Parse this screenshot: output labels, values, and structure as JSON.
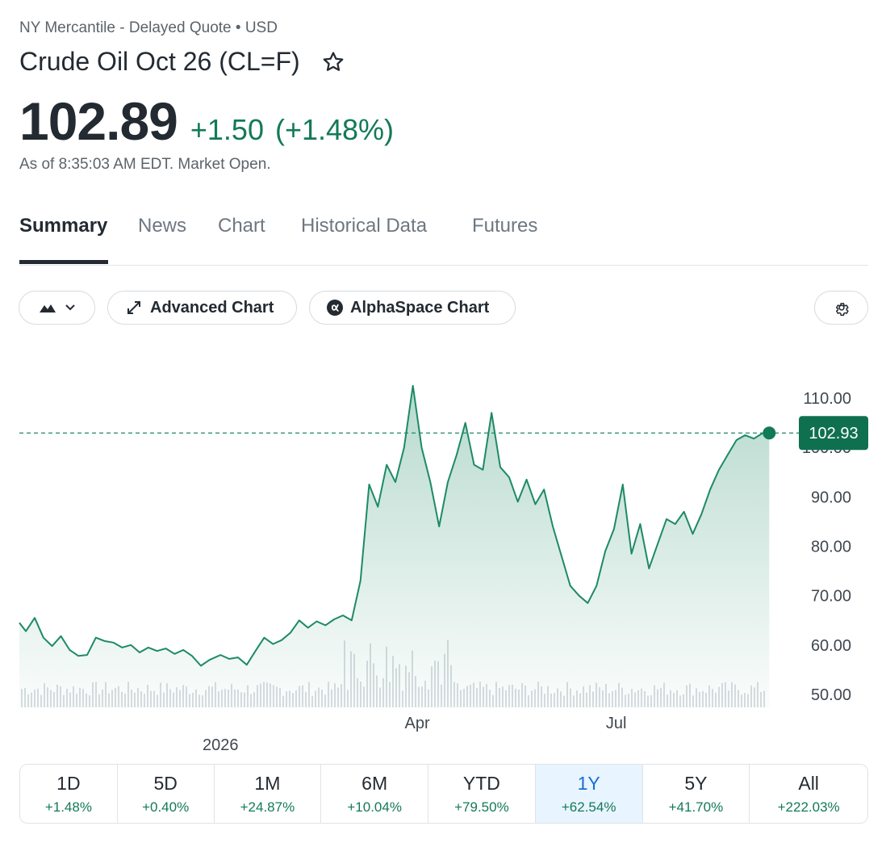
{
  "quote": {
    "exchange_line": "NY Mercantile - Delayed Quote • USD",
    "title": "Crude Oil Oct 26 (CL=F)",
    "price": "102.89",
    "change": "+1.50",
    "change_pct": "(+1.48%)",
    "as_of": "As of 8:35:03 AM EDT. Market Open."
  },
  "tabs": [
    {
      "label": "Summary",
      "active": true
    },
    {
      "label": "News"
    },
    {
      "label": "Chart"
    },
    {
      "label": "Historical Data"
    },
    {
      "label": "Futures"
    }
  ],
  "toolbar": {
    "chart_type_icon": "mountain-chart-icon",
    "advanced_label": "Advanced Chart",
    "alphaspace_label": "AlphaSpace Chart",
    "settings_icon": "gear-icon"
  },
  "colors": {
    "accent_green": "#137a56",
    "line": "#1d8a66",
    "active_period_bg": "#e8f4ff",
    "active_period_text": "#1a6fd1"
  },
  "chart_data": {
    "type": "area",
    "title": "",
    "xlabel": "",
    "ylabel": "",
    "x_range": [
      "2025-10-01",
      "2026-09-10"
    ],
    "ylim": [
      47,
      116
    ],
    "y_ticks": [
      "110.00",
      "100.00",
      "90.00",
      "80.00",
      "70.00",
      "60.00",
      "50.00"
    ],
    "y_tick_values": [
      110,
      100,
      90,
      80,
      70,
      60,
      50
    ],
    "x_tick_labels": [
      {
        "label": "Apr",
        "x": "2026-04-01"
      },
      {
        "label": "Jul",
        "x": "2026-07-01"
      },
      {
        "label": "2026",
        "x": "2026-01-01",
        "row": 2
      }
    ],
    "current_price_label": "102.93",
    "current_price": 102.93,
    "grid": false,
    "series": [
      {
        "points": [
          [
            "2025-10-01",
            64.5
          ],
          [
            "2025-10-04",
            62.8
          ],
          [
            "2025-10-08",
            65.5
          ],
          [
            "2025-10-12",
            61.5
          ],
          [
            "2025-10-16",
            59.8
          ],
          [
            "2025-10-20",
            61.8
          ],
          [
            "2025-10-24",
            59.0
          ],
          [
            "2025-10-28",
            57.8
          ],
          [
            "2025-11-01",
            58.0
          ],
          [
            "2025-11-05",
            61.5
          ],
          [
            "2025-11-09",
            60.8
          ],
          [
            "2025-11-13",
            60.5
          ],
          [
            "2025-11-17",
            59.5
          ],
          [
            "2025-11-21",
            60.0
          ],
          [
            "2025-11-25",
            58.5
          ],
          [
            "2025-11-29",
            59.5
          ],
          [
            "2025-12-03",
            58.8
          ],
          [
            "2025-12-07",
            59.3
          ],
          [
            "2025-12-11",
            58.2
          ],
          [
            "2025-12-15",
            59.0
          ],
          [
            "2025-12-19",
            57.8
          ],
          [
            "2025-12-23",
            55.8
          ],
          [
            "2025-12-27",
            57.0
          ],
          [
            "2026-01-01",
            58.0
          ],
          [
            "2026-01-05",
            57.2
          ],
          [
            "2026-01-09",
            57.5
          ],
          [
            "2026-01-13",
            56.0
          ],
          [
            "2026-01-17",
            58.8
          ],
          [
            "2026-01-21",
            61.5
          ],
          [
            "2026-01-25",
            60.2
          ],
          [
            "2026-01-29",
            61.0
          ],
          [
            "2026-02-02",
            62.5
          ],
          [
            "2026-02-06",
            65.0
          ],
          [
            "2026-02-10",
            63.5
          ],
          [
            "2026-02-14",
            64.8
          ],
          [
            "2026-02-18",
            64.0
          ],
          [
            "2026-02-22",
            65.2
          ],
          [
            "2026-02-26",
            66.0
          ],
          [
            "2026-03-02",
            65.0
          ],
          [
            "2026-03-06",
            73.0
          ],
          [
            "2026-03-10",
            92.5
          ],
          [
            "2026-03-14",
            88.0
          ],
          [
            "2026-03-18",
            96.5
          ],
          [
            "2026-03-22",
            93.0
          ],
          [
            "2026-03-26",
            100.0
          ],
          [
            "2026-03-30",
            112.5
          ],
          [
            "2026-04-03",
            100.0
          ],
          [
            "2026-04-07",
            93.0
          ],
          [
            "2026-04-11",
            84.0
          ],
          [
            "2026-04-15",
            93.0
          ],
          [
            "2026-04-19",
            98.5
          ],
          [
            "2026-04-23",
            105.0
          ],
          [
            "2026-04-27",
            96.5
          ],
          [
            "2026-05-01",
            95.5
          ],
          [
            "2026-05-05",
            107.0
          ],
          [
            "2026-05-09",
            96.0
          ],
          [
            "2026-05-13",
            94.0
          ],
          [
            "2026-05-17",
            89.0
          ],
          [
            "2026-05-21",
            93.5
          ],
          [
            "2026-05-25",
            88.5
          ],
          [
            "2026-05-29",
            91.5
          ],
          [
            "2026-06-02",
            84.0
          ],
          [
            "2026-06-06",
            78.0
          ],
          [
            "2026-06-10",
            72.0
          ],
          [
            "2026-06-14",
            70.0
          ],
          [
            "2026-06-18",
            68.5
          ],
          [
            "2026-06-22",
            72.0
          ],
          [
            "2026-06-26",
            79.0
          ],
          [
            "2026-06-30",
            83.5
          ],
          [
            "2026-07-04",
            92.5
          ],
          [
            "2026-07-08",
            78.5
          ],
          [
            "2026-07-12",
            84.5
          ],
          [
            "2026-07-16",
            75.5
          ],
          [
            "2026-07-20",
            80.5
          ],
          [
            "2026-07-24",
            85.5
          ],
          [
            "2026-07-28",
            84.5
          ],
          [
            "2026-08-01",
            87.0
          ],
          [
            "2026-08-05",
            82.5
          ],
          [
            "2026-08-09",
            86.5
          ],
          [
            "2026-08-13",
            91.5
          ],
          [
            "2026-08-17",
            95.5
          ],
          [
            "2026-08-21",
            98.5
          ],
          [
            "2026-08-25",
            101.5
          ],
          [
            "2026-08-29",
            102.5
          ],
          [
            "2026-09-02",
            101.8
          ],
          [
            "2026-09-06",
            102.9
          ],
          [
            "2026-09-09",
            102.93
          ]
        ]
      }
    ]
  },
  "periods": [
    {
      "label": "1D",
      "value": "+1.48%"
    },
    {
      "label": "5D",
      "value": "+0.40%"
    },
    {
      "label": "1M",
      "value": "+24.87%"
    },
    {
      "label": "6M",
      "value": "+10.04%"
    },
    {
      "label": "YTD",
      "value": "+79.50%"
    },
    {
      "label": "1Y",
      "value": "+62.54%",
      "active": true
    },
    {
      "label": "5Y",
      "value": "+41.70%"
    },
    {
      "label": "All",
      "value": "+222.03%"
    }
  ]
}
